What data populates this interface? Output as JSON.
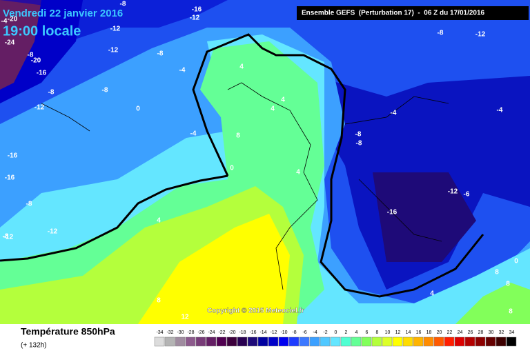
{
  "header": {
    "date": "Vendredi 22 janvier 2016",
    "time": "19:00 locale",
    "run": "Ensemble GEFS  (Perturbation 17)  -  06 Z du 17/01/2016"
  },
  "copyright": "Copyright © 2015 Meteociel.fr",
  "footer": {
    "title": "Température 850hPa",
    "lead": "(+ 132h)"
  },
  "contour_labels": [
    -8,
    -16,
    -12,
    -20,
    -24,
    -8,
    -20,
    -16,
    -12,
    -8,
    -8,
    -4,
    -12,
    0,
    -4,
    -8,
    -12,
    4,
    4,
    4,
    8,
    0,
    4,
    -8,
    -8,
    -4,
    -4,
    -12,
    -8,
    -16,
    -16,
    -8,
    -12,
    -12,
    4,
    8,
    12,
    -4,
    -8,
    -12,
    0,
    4,
    8,
    8,
    8,
    -16,
    -6
  ],
  "scale": {
    "values": [
      -34,
      -32,
      -30,
      -28,
      -26,
      -24,
      -22,
      -20,
      -18,
      -16,
      -14,
      -12,
      -10,
      -8,
      -6,
      -4,
      -2,
      0,
      2,
      4,
      6,
      8,
      10,
      12,
      14,
      16,
      18,
      20,
      22,
      24,
      26,
      28,
      30,
      32,
      34
    ],
    "colors": [
      "#dcdcdc",
      "#b4b4b4",
      "#a08ca0",
      "#8c5a8c",
      "#783c78",
      "#641e64",
      "#500050",
      "#3c003c",
      "#280050",
      "#1e0a78",
      "#0000a0",
      "#0000c8",
      "#0000f0",
      "#1e3cff",
      "#3c78ff",
      "#3ca0ff",
      "#50c8ff",
      "#64e6ff",
      "#50ffd2",
      "#64ff96",
      "#82ff5a",
      "#b4ff3c",
      "#dcff28",
      "#ffff00",
      "#ffdc00",
      "#ffb400",
      "#ff8c00",
      "#ff5a00",
      "#ff1e00",
      "#dc0000",
      "#b40000",
      "#8c0000",
      "#640000",
      "#3c0000",
      "#000000"
    ]
  }
}
